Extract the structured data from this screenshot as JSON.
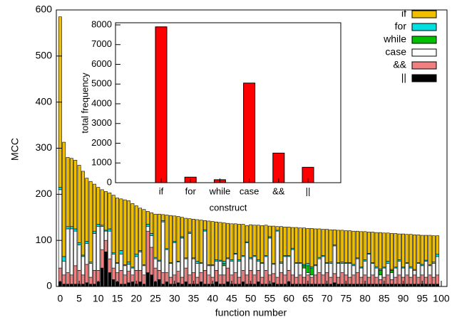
{
  "chart_data": [
    {
      "type": "stacked-bar",
      "x_label": "function number",
      "y_label": "MCC",
      "x": [
        0,
        1,
        2,
        3,
        4,
        5,
        6,
        7,
        8,
        9,
        10,
        11,
        12,
        13,
        14,
        15,
        16,
        17,
        18,
        19,
        20,
        21,
        22,
        23,
        24,
        25,
        26,
        27,
        28,
        29,
        30,
        31,
        32,
        33,
        34,
        35,
        36,
        37,
        38,
        39,
        40,
        41,
        42,
        43,
        44,
        45,
        46,
        47,
        48,
        49,
        50,
        51,
        52,
        53,
        54,
        55,
        56,
        57,
        58,
        59,
        60,
        61,
        62,
        63,
        64,
        65,
        66,
        67,
        68,
        69,
        70,
        71,
        72,
        73,
        74,
        75,
        76,
        77,
        78,
        79,
        80,
        81,
        82,
        83,
        84,
        85,
        86,
        87,
        88,
        89,
        90,
        91,
        92,
        93,
        94,
        95,
        96,
        97,
        98,
        99
      ],
      "xlim": [
        -1,
        101.5
      ],
      "xticks": [
        0,
        5,
        10,
        15,
        20,
        25,
        30,
        35,
        40,
        45,
        50,
        55,
        60,
        65,
        70,
        75,
        80,
        85,
        90,
        95,
        100
      ],
      "ylim": [
        0,
        600
      ],
      "yticks": [
        0,
        100,
        200,
        300,
        400,
        500,
        600
      ],
      "legend": "top-right",
      "series": [
        {
          "name": "if",
          "color": "#f0c000",
          "values": [
            370,
            248,
            150,
            148,
            149,
            168,
            182,
            137,
            175,
            102,
            80,
            77,
            84,
            78,
            125,
            140,
            112,
            141,
            133,
            138,
            105,
            92,
            120,
            28,
            45,
            94,
            100,
            13,
            73,
            102,
            55,
            97,
            42,
            86,
            29,
            84,
            90,
            92,
            20,
            95,
            94,
            82,
            82,
            83,
            75,
            78,
            64,
            77,
            68,
            35,
            71,
            66,
            75,
            80,
            66,
            23,
            81,
            8,
            77,
            62,
            62,
            45,
            76,
            75,
            79,
            76,
            83,
            78,
            62,
            57,
            72,
            70,
            33,
            70,
            69,
            69,
            69,
            72,
            58,
            77,
            61,
            46,
            66,
            74,
            79,
            74,
            61,
            78,
            73,
            56,
            72,
            61,
            70,
            75,
            60,
            63,
            54,
            64,
            57,
            40
          ]
        },
        {
          "name": "for",
          "color": "#00e0e0",
          "values": [
            5,
            10,
            5,
            5,
            5,
            5,
            3,
            5,
            3,
            5,
            5,
            3,
            2,
            5,
            3,
            2,
            8,
            2,
            5,
            2,
            5,
            3,
            2,
            5,
            5,
            3,
            2,
            3,
            2,
            2,
            3,
            2,
            3,
            2,
            3,
            2,
            5,
            2,
            3,
            2,
            2,
            3,
            2,
            5,
            2,
            3,
            2,
            3,
            2,
            2,
            3,
            2,
            3,
            2,
            2,
            3,
            2,
            2,
            3,
            2,
            2,
            3,
            2,
            2,
            3,
            5,
            3,
            2,
            3,
            2,
            2,
            3,
            2,
            2,
            3,
            2,
            2,
            3,
            2,
            2,
            3,
            2,
            2,
            3,
            3,
            2,
            5,
            2,
            2,
            3,
            2,
            2,
            3,
            2,
            2,
            3,
            2,
            2,
            3,
            5
          ]
        },
        {
          "name": "while",
          "color": "#00c000",
          "values": [
            0,
            0,
            0,
            0,
            0,
            0,
            0,
            0,
            0,
            0,
            0,
            0,
            0,
            0,
            0,
            0,
            0,
            0,
            0,
            0,
            0,
            0,
            0,
            0,
            0,
            0,
            0,
            0,
            0,
            0,
            0,
            0,
            0,
            0,
            0,
            0,
            0,
            0,
            0,
            0,
            0,
            0,
            0,
            5,
            0,
            0,
            0,
            0,
            0,
            0,
            0,
            0,
            0,
            0,
            0,
            0,
            0,
            0,
            0,
            0,
            0,
            0,
            0,
            0,
            5,
            15,
            15,
            0,
            0,
            0,
            0,
            0,
            0,
            0,
            0,
            0,
            0,
            0,
            0,
            0,
            0,
            0,
            0,
            0,
            10,
            0,
            0,
            5,
            0,
            0,
            0,
            0,
            0,
            0,
            0,
            0,
            0,
            0,
            0,
            0
          ]
        },
        {
          "name": "case",
          "color": "#ffffff",
          "values": [
            170,
            30,
            95,
            100,
            75,
            55,
            40,
            45,
            30,
            80,
            95,
            50,
            20,
            60,
            30,
            20,
            35,
            20,
            15,
            15,
            30,
            40,
            20,
            10,
            25,
            20,
            20,
            110,
            50,
            30,
            70,
            20,
            85,
            20,
            90,
            30,
            30,
            20,
            85,
            20,
            25,
            20,
            30,
            20,
            20,
            30,
            40,
            35,
            30,
            70,
            25,
            40,
            20,
            30,
            30,
            80,
            20,
            100,
            20,
            40,
            30,
            55,
            30,
            25,
            20,
            5,
            5,
            20,
            30,
            40,
            20,
            30,
            60,
            30,
            20,
            25,
            30,
            20,
            30,
            20,
            30,
            50,
            25,
            20,
            10,
            20,
            25,
            15,
            20,
            30,
            20,
            25,
            20,
            10,
            30,
            20,
            35,
            20,
            30,
            40
          ]
        },
        {
          "name": "&&",
          "color": "#f08080",
          "values": [
            30,
            20,
            25,
            20,
            40,
            30,
            20,
            40,
            15,
            30,
            25,
            40,
            25,
            30,
            25,
            20,
            30,
            20,
            25,
            15,
            30,
            25,
            20,
            90,
            60,
            30,
            20,
            25,
            20,
            15,
            20,
            25,
            15,
            30,
            20,
            25,
            15,
            20,
            30,
            20,
            15,
            25,
            20,
            20,
            30,
            20,
            25,
            15,
            25,
            20,
            30,
            20,
            25,
            15,
            30,
            20,
            20,
            15,
            25,
            20,
            25,
            20,
            15,
            20,
            15,
            20,
            15,
            20,
            25,
            20,
            25,
            15,
            20,
            15,
            25,
            20,
            15,
            20,
            25,
            15,
            20,
            15,
            20,
            15,
            10,
            15,
            20,
            10,
            15,
            20,
            15,
            20,
            15,
            20,
            15,
            20,
            15,
            20,
            15,
            20
          ]
        },
        {
          "name": "||",
          "color": "#000000",
          "values": [
            10,
            5,
            5,
            5,
            5,
            5,
            5,
            8,
            5,
            5,
            10,
            40,
            75,
            30,
            15,
            10,
            5,
            5,
            8,
            10,
            5,
            10,
            5,
            30,
            25,
            10,
            15,
            5,
            10,
            5,
            5,
            8,
            5,
            10,
            5,
            5,
            5,
            10,
            5,
            5,
            5,
            10,
            5,
            5,
            10,
            5,
            5,
            5,
            10,
            5,
            5,
            5,
            10,
            5,
            5,
            5,
            8,
            5,
            5,
            5,
            10,
            5,
            5,
            5,
            5,
            5,
            5,
            5,
            5,
            5,
            5,
            5,
            8,
            5,
            5,
            5,
            5,
            5,
            5,
            5,
            5,
            5,
            5,
            5,
            5,
            5,
            5,
            5,
            5,
            5,
            5,
            5,
            5,
            5,
            5,
            5,
            5,
            5,
            5,
            5
          ]
        }
      ]
    },
    {
      "type": "bar",
      "x_label": "construct",
      "y_label": "total frequency",
      "categories": [
        "if",
        "for",
        "while",
        "case",
        "&&",
        "||"
      ],
      "values": [
        7900,
        280,
        150,
        5050,
        1500,
        780
      ],
      "color": "#ff0000",
      "ylim": [
        0,
        8000
      ],
      "yticks": [
        0,
        1000,
        2000,
        3000,
        4000,
        5000,
        6000,
        7000,
        8000
      ]
    }
  ]
}
